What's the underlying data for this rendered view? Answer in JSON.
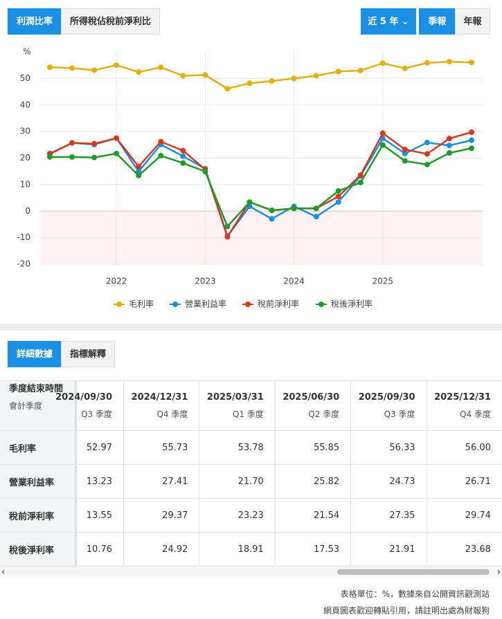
{
  "tabs": [
    "利潤比率",
    "所得稅佔稅前淨利比"
  ],
  "period_selector": "近 5 年",
  "frequency": [
    "季報",
    "年報"
  ],
  "chart_data": {
    "type": "line",
    "y_unit_label": "%",
    "categories": [
      null,
      null,
      null,
      "2022",
      null,
      null,
      null,
      "2023",
      null,
      null,
      null,
      "2024",
      null,
      null,
      null,
      "2025",
      null,
      null,
      null,
      null
    ],
    "series": [
      {
        "name": "毛利率",
        "color": "#e3ae0e",
        "values": [
          54.2,
          53.9,
          53.1,
          55.0,
          52.4,
          54.2,
          51.0,
          51.3,
          46.1,
          48.2,
          49.0,
          50.0,
          51.0,
          52.6,
          52.97,
          55.73,
          53.78,
          55.85,
          56.33,
          56.0
        ]
      },
      {
        "name": "營業利益率",
        "color": "#1f8de0",
        "values": [
          21.7,
          25.7,
          25.1,
          27.5,
          14.9,
          25.1,
          20.7,
          16.0,
          -9.4,
          1.8,
          -2.9,
          1.8,
          -2.1,
          3.4,
          13.23,
          27.41,
          21.7,
          25.82,
          24.73,
          26.71
        ]
      },
      {
        "name": "稅前淨利率",
        "color": "#d23b20",
        "values": [
          21.5,
          25.7,
          25.4,
          27.5,
          16.8,
          26.2,
          22.8,
          15.7,
          -9.7,
          3.4,
          0.3,
          1.0,
          1.0,
          5.5,
          13.55,
          29.37,
          23.23,
          21.54,
          27.35,
          29.74
        ]
      },
      {
        "name": "稅後淨利率",
        "color": "#1f9a2b",
        "values": [
          20.4,
          20.4,
          20.2,
          21.7,
          13.4,
          20.9,
          18.1,
          14.9,
          -5.8,
          3.4,
          0.3,
          1.0,
          1.0,
          7.6,
          10.76,
          24.92,
          18.91,
          17.53,
          21.91,
          23.68
        ]
      }
    ],
    "ylim": [
      -20,
      60
    ],
    "yticks": [
      -20,
      -10,
      0,
      10,
      20,
      30,
      40,
      50
    ],
    "grid": true,
    "legend": "bottom"
  },
  "detail_tabs": [
    "詳細數據",
    "指標解釋"
  ],
  "table": {
    "header": [
      "季度結束時間",
      "會計季度"
    ],
    "columns": [
      [
        "2024/09/30",
        "Q3 季度"
      ],
      [
        "2024/12/31",
        "Q4 季度"
      ],
      [
        "2025/03/31",
        "Q1 季度"
      ],
      [
        "2025/06/30",
        "Q2 季度"
      ],
      [
        "2025/09/30",
        "Q3 季度"
      ],
      [
        "2025/12/31",
        "Q4 季度"
      ]
    ],
    "rows": [
      {
        "label": "毛利率",
        "values": [
          "52.97",
          "55.73",
          "53.78",
          "55.85",
          "56.33",
          "56.00"
        ]
      },
      {
        "label": "營業利益率",
        "values": [
          "13.23",
          "27.41",
          "21.70",
          "25.82",
          "24.73",
          "26.71"
        ]
      },
      {
        "label": "稅前淨利率",
        "values": [
          "13.55",
          "29.37",
          "23.23",
          "21.54",
          "27.35",
          "29.74"
        ]
      },
      {
        "label": "稅後淨利率",
        "values": [
          "10.76",
          "24.92",
          "18.91",
          "17.53",
          "21.91",
          "23.68"
        ]
      }
    ]
  },
  "footer": [
    "表格單位：%，數據來自公開資訊觀測站",
    "網頁圖表歡迎轉貼引用，請註明出處為財報狗"
  ]
}
